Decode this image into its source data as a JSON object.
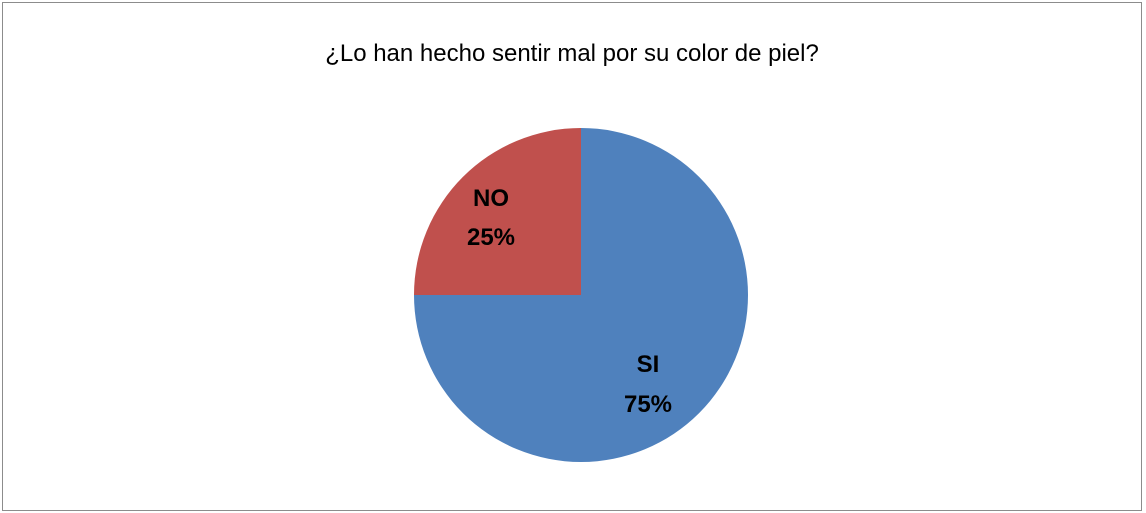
{
  "chart_data": {
    "type": "pie",
    "title": "¿Lo han hecho sentir mal por su color de piel?",
    "slices": [
      {
        "label": "SI",
        "percent_label": "75%",
        "value": 75,
        "color": "#4f81bd"
      },
      {
        "label": "NO",
        "percent_label": "25%",
        "value": 25,
        "color": "#c0504d"
      }
    ],
    "start": "12 o'clock",
    "direction": "clockwise",
    "legend": "none"
  }
}
